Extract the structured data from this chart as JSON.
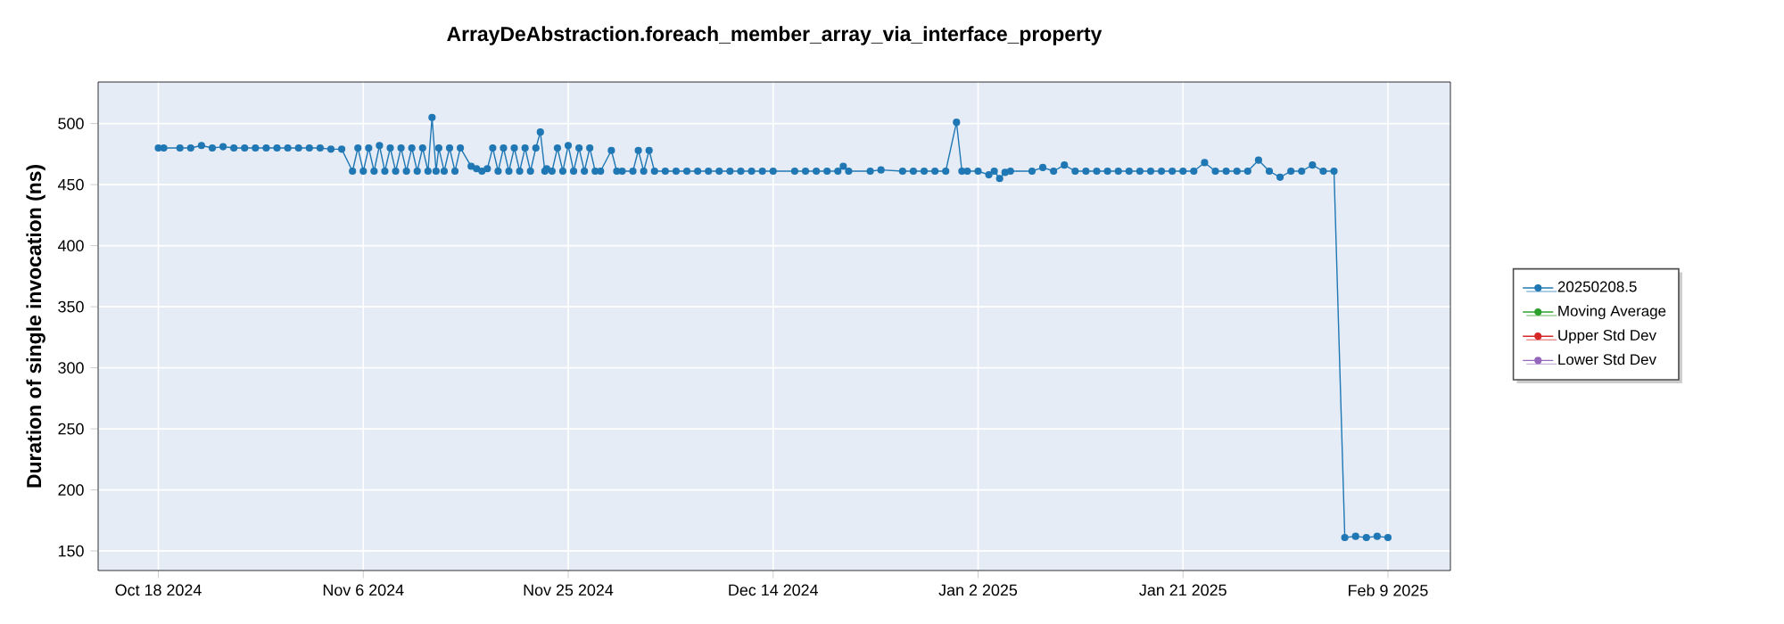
{
  "chart_data": {
    "type": "line",
    "title": "ArrayDeAbstraction.foreach_member_array_via_interface_property",
    "ylabel": "Duration of single invocation (ns)",
    "xlim": [
      "2024-10-12T10:00",
      "2025-02-14T19:00"
    ],
    "ylim": [
      134,
      534
    ],
    "xticks": [
      {
        "value": "2024-10-18",
        "label": "Oct 18 2024"
      },
      {
        "value": "2024-11-06",
        "label": "Nov 6 2024"
      },
      {
        "value": "2024-11-25",
        "label": "Nov 25 2024"
      },
      {
        "value": "2024-12-14",
        "label": "Dec 14 2024"
      },
      {
        "value": "2025-01-02",
        "label": "Jan 2 2025"
      },
      {
        "value": "2025-01-21",
        "label": "Jan 21 2025"
      },
      {
        "value": "2025-02-09",
        "label": "Feb 9 2025"
      }
    ],
    "yticks": [
      150,
      200,
      250,
      300,
      350,
      400,
      450,
      500
    ],
    "grid": true,
    "legend": "right",
    "marker": "circle",
    "line_style": "solid",
    "series": [
      {
        "name": "20250208.5",
        "color": "#1f77b4",
        "x": [
          "2024-10-18",
          "2024-10-18T12:00",
          "2024-10-20",
          "2024-10-21",
          "2024-10-22",
          "2024-10-23",
          "2024-10-24",
          "2024-10-25",
          "2024-10-26",
          "2024-10-27",
          "2024-10-28",
          "2024-10-29",
          "2024-10-30",
          "2024-10-31",
          "2024-11-01",
          "2024-11-02",
          "2024-11-03",
          "2024-11-04",
          "2024-11-05",
          "2024-11-05T12:00",
          "2024-11-06",
          "2024-11-06T12:00",
          "2024-11-07",
          "2024-11-07T12:00",
          "2024-11-08",
          "2024-11-08T12:00",
          "2024-11-09",
          "2024-11-09T12:00",
          "2024-11-10",
          "2024-11-10T12:00",
          "2024-11-11",
          "2024-11-11T12:00",
          "2024-11-12",
          "2024-11-12T09:00",
          "2024-11-12T18:00",
          "2024-11-13",
          "2024-11-13T12:00",
          "2024-11-14",
          "2024-11-14T12:00",
          "2024-11-15",
          "2024-11-16",
          "2024-11-16T12:00",
          "2024-11-17",
          "2024-11-17T12:00",
          "2024-11-18",
          "2024-11-18T12:00",
          "2024-11-19",
          "2024-11-19T12:00",
          "2024-11-20",
          "2024-11-20T12:00",
          "2024-11-21",
          "2024-11-21T12:00",
          "2024-11-22",
          "2024-11-22T10:00",
          "2024-11-22T20:00",
          "2024-11-23",
          "2024-11-23T12:00",
          "2024-11-24",
          "2024-11-24T12:00",
          "2024-11-25",
          "2024-11-25T12:00",
          "2024-11-26",
          "2024-11-26T12:00",
          "2024-11-27",
          "2024-11-27T12:00",
          "2024-11-28",
          "2024-11-29",
          "2024-11-29T12:00",
          "2024-11-30",
          "2024-12-01",
          "2024-12-01T12:00",
          "2024-12-02",
          "2024-12-02T12:00",
          "2024-12-03",
          "2024-12-04",
          "2024-12-05",
          "2024-12-06",
          "2024-12-07",
          "2024-12-08",
          "2024-12-09",
          "2024-12-10",
          "2024-12-11",
          "2024-12-12",
          "2024-12-13",
          "2024-12-14",
          "2024-12-16",
          "2024-12-17",
          "2024-12-18",
          "2024-12-19",
          "2024-12-20",
          "2024-12-20T12:00",
          "2024-12-21",
          "2024-12-23",
          "2024-12-24",
          "2024-12-26",
          "2024-12-27",
          "2024-12-28",
          "2024-12-29",
          "2024-12-30",
          "2024-12-31",
          "2024-12-31T12:00",
          "2025-01-01",
          "2025-01-02",
          "2025-01-03",
          "2025-01-03T12:00",
          "2025-01-04",
          "2025-01-04T12:00",
          "2025-01-05",
          "2025-01-07",
          "2025-01-08",
          "2025-01-09",
          "2025-01-10",
          "2025-01-11",
          "2025-01-12",
          "2025-01-13",
          "2025-01-14",
          "2025-01-15",
          "2025-01-16",
          "2025-01-17",
          "2025-01-18",
          "2025-01-19",
          "2025-01-20",
          "2025-01-21",
          "2025-01-22",
          "2025-01-23",
          "2025-01-24",
          "2025-01-25",
          "2025-01-26",
          "2025-01-27",
          "2025-01-28",
          "2025-01-29",
          "2025-01-30",
          "2025-01-31",
          "2025-02-01",
          "2025-02-02",
          "2025-02-03",
          "2025-02-04",
          "2025-02-05",
          "2025-02-06",
          "2025-02-07",
          "2025-02-08",
          "2025-02-09"
        ],
        "values": [
          480,
          480,
          480,
          480,
          482,
          480,
          481,
          480,
          480,
          480,
          480,
          480,
          480,
          480,
          480,
          480,
          479,
          479,
          461,
          480,
          461,
          480,
          461,
          482,
          461,
          480,
          461,
          480,
          461,
          480,
          461,
          480,
          461,
          505,
          461,
          480,
          461,
          480,
          461,
          480,
          465,
          463,
          461,
          463,
          480,
          461,
          480,
          461,
          480,
          461,
          480,
          461,
          480,
          493,
          461,
          463,
          461,
          480,
          461,
          482,
          461,
          480,
          461,
          480,
          461,
          461,
          478,
          461,
          461,
          461,
          478,
          461,
          478,
          461,
          461,
          461,
          461,
          461,
          461,
          461,
          461,
          461,
          461,
          461,
          461,
          461,
          461,
          461,
          461,
          461,
          465,
          461,
          461,
          462,
          461,
          461,
          461,
          461,
          461,
          501,
          461,
          461,
          461,
          458,
          461,
          455,
          460,
          461,
          461,
          464,
          461,
          466,
          461,
          461,
          461,
          461,
          461,
          461,
          461,
          461,
          461,
          461,
          461,
          461,
          468,
          461,
          461,
          461,
          461,
          470,
          461,
          456,
          461,
          461,
          466,
          461,
          461,
          161,
          162,
          161,
          162,
          161
        ]
      },
      {
        "name": "Moving Average",
        "color": "#2ca02c"
      },
      {
        "name": "Upper Std Dev",
        "color": "#d62728"
      },
      {
        "name": "Lower Std Dev",
        "color": "#9467bd"
      }
    ]
  }
}
